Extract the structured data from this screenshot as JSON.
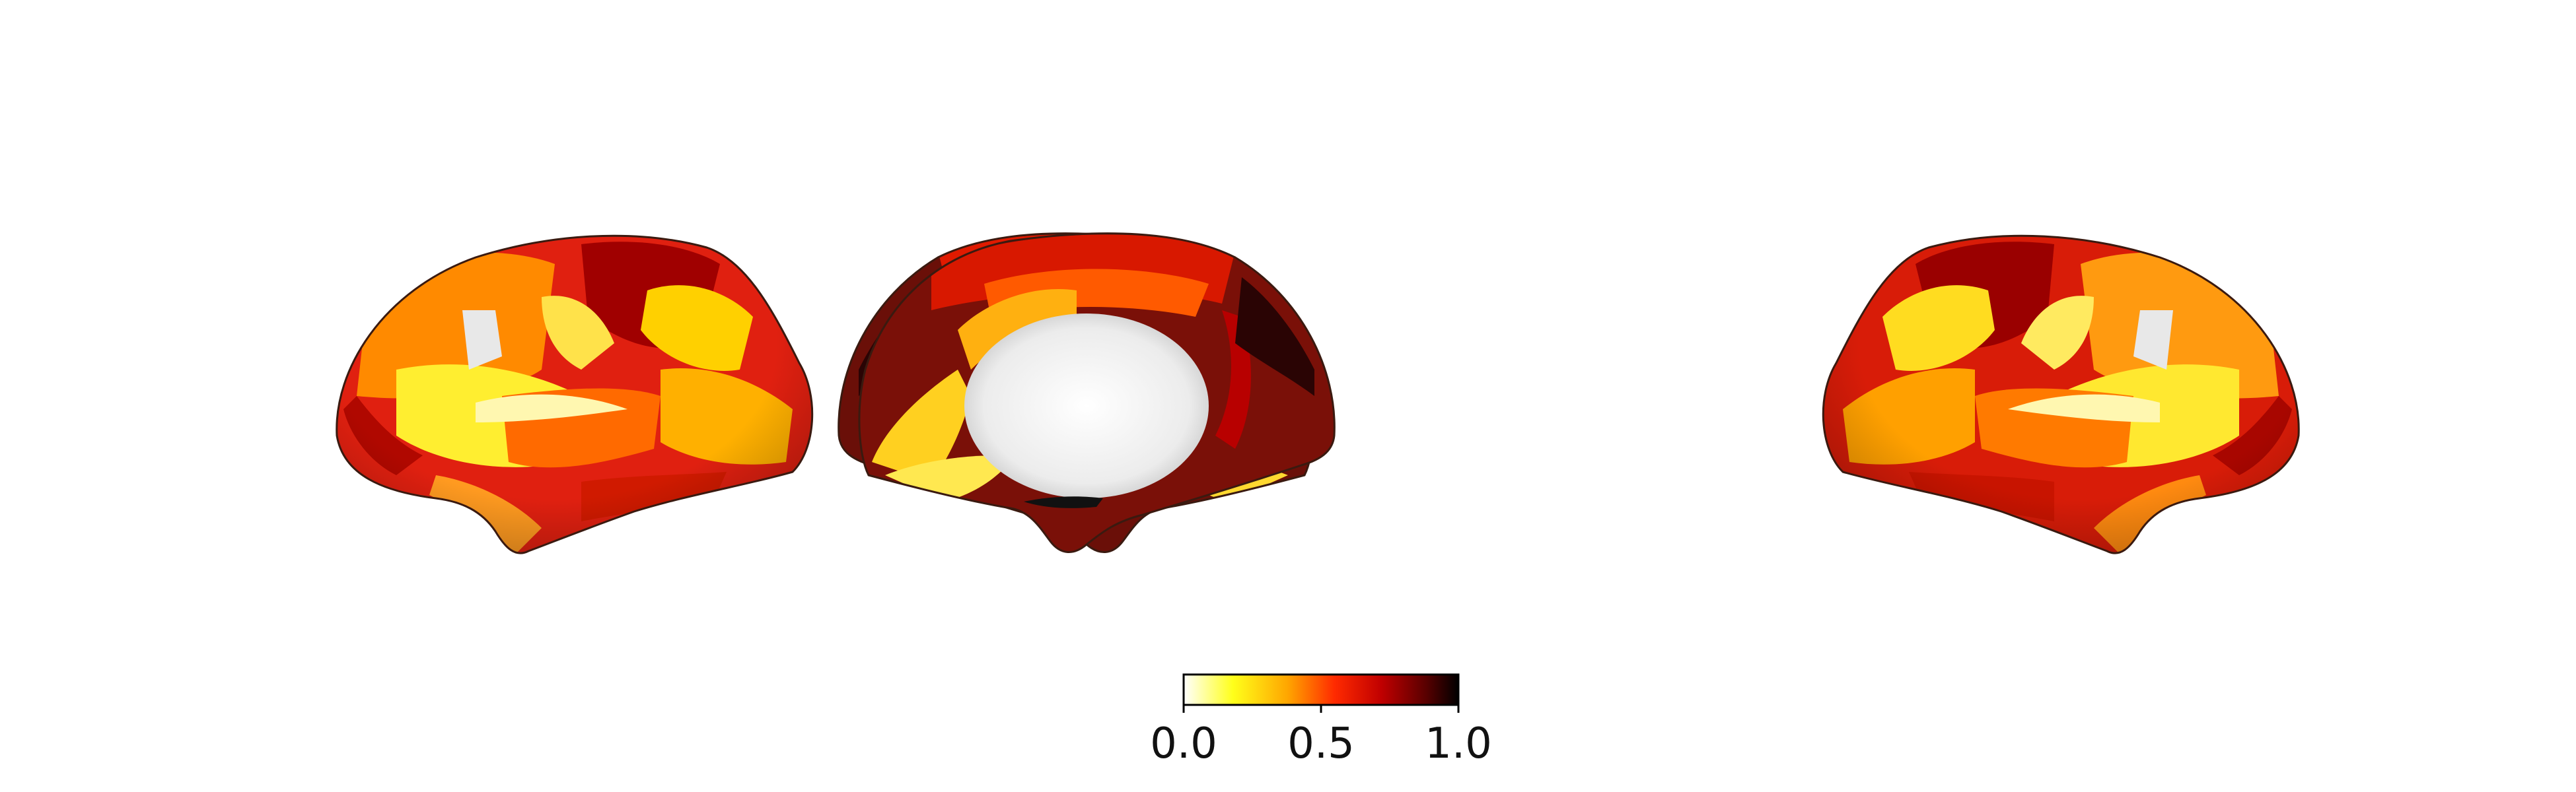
{
  "figure": {
    "background": "#ffffff",
    "views": [
      {
        "hemisphere": "left",
        "view": "lateral"
      },
      {
        "hemisphere": "left",
        "view": "medial"
      },
      {
        "hemisphere": "right",
        "view": "medial"
      },
      {
        "hemisphere": "right",
        "view": "lateral"
      }
    ],
    "medial_wall_color": "#e8e8e8"
  },
  "colorbar": {
    "colormap": "hot_r",
    "range": [
      0.0,
      1.0
    ],
    "ticks": [
      "0.0",
      "0.5",
      "1.0"
    ],
    "stops": [
      "#ffffff",
      "#ffff1a",
      "#ffa500",
      "#ff2a00",
      "#c00000",
      "#5a0000",
      "#000000"
    ]
  }
}
